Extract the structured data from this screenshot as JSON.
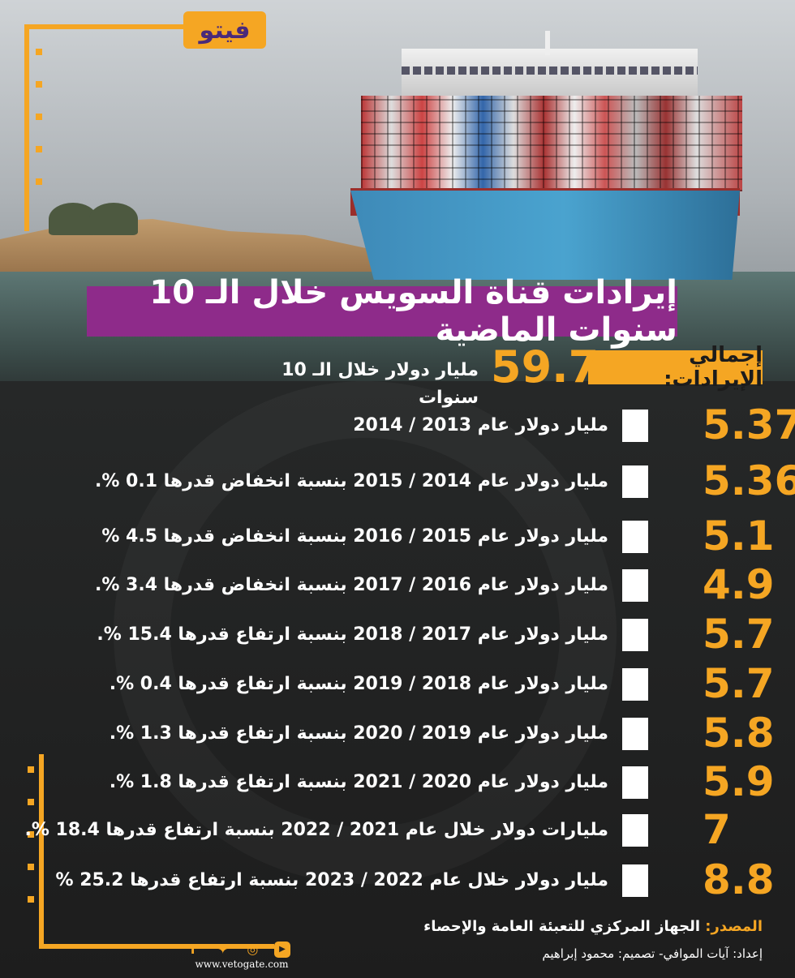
{
  "logo": {
    "text": "فيتو"
  },
  "title": "إيرادات قناة السويس خلال الـ 10 سنوات الماضية",
  "total": {
    "label": "إجمالي الإيرادات:",
    "value": "59.7",
    "unit": "مليار دولار خلال الـ 10 سنوات"
  },
  "rows": [
    {
      "value": "5.37",
      "text": "مليار دولار عام 2013 / 2014"
    },
    {
      "value": "5.36",
      "text": "مليار دولار عام 2014 / 2015 بنسبة انخفاض قدرها 0.1 %."
    },
    {
      "value": "5.1",
      "text": "مليار دولار عام 2015 / 2016 بنسبة انخفاض قدرها 4.5 %"
    },
    {
      "value": "4.9",
      "text": "مليار دولار عام 2016 / 2017 بنسبة انخفاض قدرها 3.4 %."
    },
    {
      "value": "5.7",
      "text": "مليار دولار عام 2017 / 2018 بنسبة ارتفاع قدرها 15.4 %."
    },
    {
      "value": "5.7",
      "text": "مليار دولار عام 2018 / 2019 بنسبة ارتفاع قدرها 0.4 %."
    },
    {
      "value": "5.8",
      "text": "مليار دولار عام 2019 / 2020 بنسبة ارتفاع قدرها 1.3 %."
    },
    {
      "value": "5.9",
      "text": "مليار دولار عام 2020 / 2021 بنسبة ارتفاع قدرها 1.8 %."
    },
    {
      "value": "7",
      "text": "مليارات دولار خلال عام 2021 / 2022 بنسبة ارتفاع قدرها 18.4 %."
    },
    {
      "value": "8.8",
      "text": "مليار دولار خلال عام 2022 / 2023 بنسبة ارتفاع قدرها 25.2 %"
    }
  ],
  "source": {
    "label": "المصدر:",
    "text": "الجهاز المركزي للتعبئة العامة والإحصاء"
  },
  "credits": "إعداد: آيات الموافي- تصميم: محمود إبراهيم",
  "social": {
    "icons": [
      "facebook-icon",
      "twitter-icon",
      "instagram-icon",
      "youtube-icon"
    ]
  },
  "website": "www.vetogate.com",
  "colors": {
    "accent": "#f5a623",
    "title_bg": "#8e2b8a",
    "background": "#232323"
  }
}
